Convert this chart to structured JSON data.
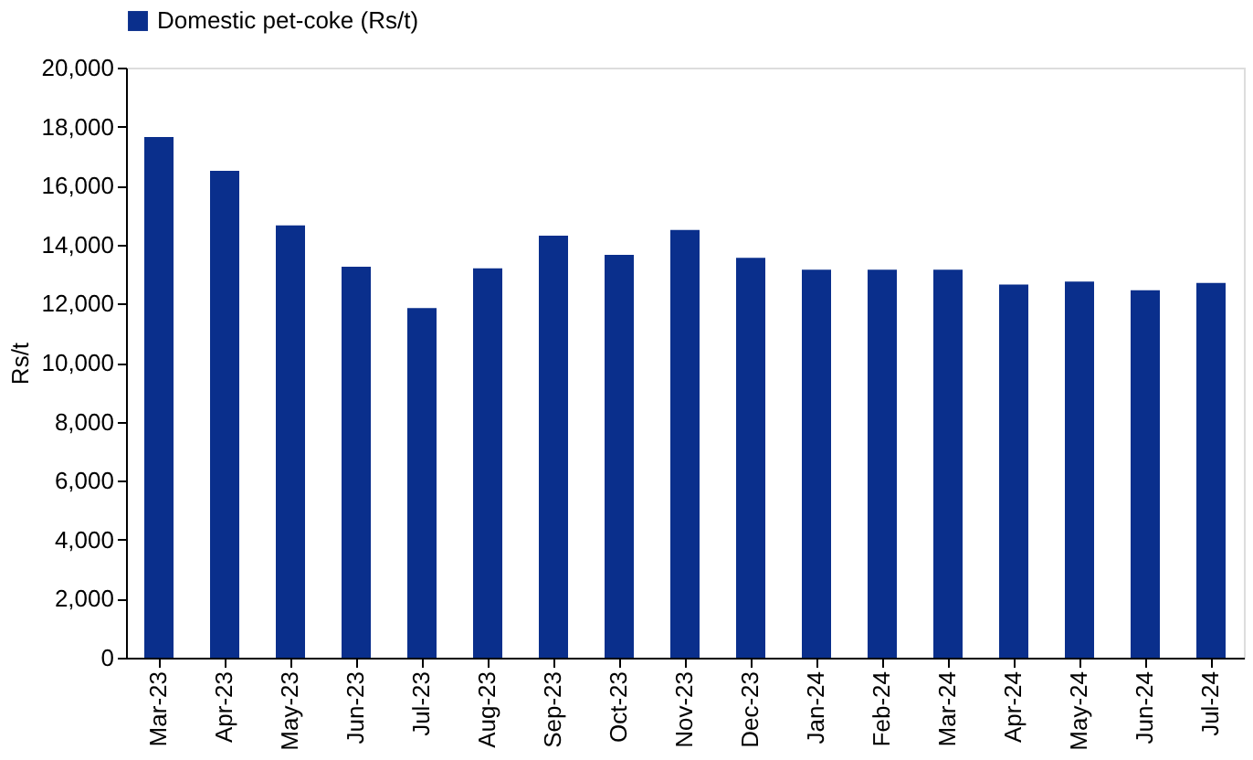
{
  "chart_data": {
    "type": "bar",
    "categories": [
      "Mar-23",
      "Apr-23",
      "May-23",
      "Jun-23",
      "Jul-23",
      "Aug-23",
      "Sep-23",
      "Oct-23",
      "Nov-23",
      "Dec-23",
      "Jan-24",
      "Feb-24",
      "Mar-24",
      "Apr-24",
      "May-24",
      "Jun-24",
      "Jul-24"
    ],
    "series": [
      {
        "name": "Domestic pet-coke (Rs/t)",
        "color": "#0a2f8c",
        "values": [
          17650,
          16500,
          14650,
          13250,
          11850,
          13200,
          14300,
          13650,
          14500,
          13550,
          13150,
          13150,
          13150,
          12650,
          12750,
          12450,
          12700
        ]
      }
    ],
    "ylabel": "Rs/t",
    "ylim": [
      0,
      20000
    ],
    "yticks": [
      0,
      {
        "value": 2000,
        "label": "2,000"
      },
      {
        "value": 4000,
        "label": "4,000"
      },
      {
        "value": 6000,
        "label": "6,000"
      },
      {
        "value": 8000,
        "label": "8,000"
      },
      {
        "value": 10000,
        "label": "10,000"
      },
      {
        "value": 12000,
        "label": "12,000"
      },
      {
        "value": 14000,
        "label": "14,000"
      },
      {
        "value": 16000,
        "label": "16,000"
      },
      {
        "value": 18000,
        "label": "18,000"
      },
      {
        "value": 20000,
        "label": "20,000"
      }
    ],
    "grid": false,
    "legend": "top"
  }
}
